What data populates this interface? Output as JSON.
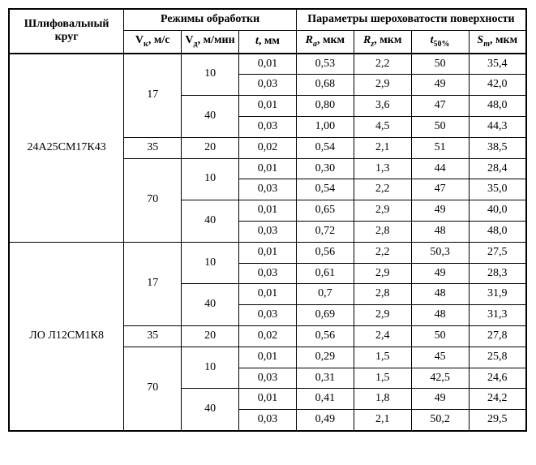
{
  "headers": {
    "wheel": "Шлифовальный круг",
    "modes": "Режимы обработки",
    "roughness": "Параметры шероховатости поверхности",
    "vk": "V<sub>к</sub>, м/с",
    "vd": "V<sub>д</sub>, м/мин",
    "t": "<i>t</i>, мм",
    "ra": "<i>R<sub>a</sub></i>, мкм",
    "rz": "<i>R<sub>z</sub></i>, мкм",
    "t50": "<i>t</i><sub>50%</sub>",
    "st": "<i>S<sub>т</sub></i>, мкм"
  },
  "groups": [
    {
      "wheel": "24А25СМ17К43",
      "blocks": [
        {
          "vk": "17",
          "sub": [
            {
              "vd": "10",
              "rows": [
                {
                  "t": "0,01",
                  "ra": "0,53",
                  "rz": "2,2",
                  "t50": "50",
                  "st": "35,4"
                },
                {
                  "t": "0,03",
                  "ra": "0,68",
                  "rz": "2,9",
                  "t50": "49",
                  "st": "42,0"
                }
              ]
            },
            {
              "vd": "40",
              "rows": [
                {
                  "t": "0,01",
                  "ra": "0,80",
                  "rz": "3,6",
                  "t50": "47",
                  "st": "48,0"
                },
                {
                  "t": "0,03",
                  "ra": "1,00",
                  "rz": "4,5",
                  "t50": "50",
                  "st": "44,3"
                }
              ]
            }
          ]
        },
        {
          "vk": "35",
          "sub": [
            {
              "vd": "20",
              "rows": [
                {
                  "t": "0,02",
                  "ra": "0,54",
                  "rz": "2,1",
                  "t50": "51",
                  "st": "38,5"
                }
              ]
            }
          ]
        },
        {
          "vk": "70",
          "sub": [
            {
              "vd": "10",
              "rows": [
                {
                  "t": "0,01",
                  "ra": "0,30",
                  "rz": "1,3",
                  "t50": "44",
                  "st": "28,4"
                },
                {
                  "t": "0,03",
                  "ra": "0,54",
                  "rz": "2,2",
                  "t50": "47",
                  "st": "35,0"
                }
              ]
            },
            {
              "vd": "40",
              "rows": [
                {
                  "t": "0,01",
                  "ra": "0,65",
                  "rz": "2,9",
                  "t50": "49",
                  "st": "40,0"
                },
                {
                  "t": "0,03",
                  "ra": "0,72",
                  "rz": "2,8",
                  "t50": "48",
                  "st": "48,0"
                }
              ]
            }
          ]
        }
      ]
    },
    {
      "wheel": "ЛО Л12СМ1К8",
      "blocks": [
        {
          "vk": "17",
          "sub": [
            {
              "vd": "10",
              "rows": [
                {
                  "t": "0,01",
                  "ra": "0,56",
                  "rz": "2,2",
                  "t50": "50,3",
                  "st": "27,5"
                },
                {
                  "t": "0,03",
                  "ra": "0,61",
                  "rz": "2,9",
                  "t50": "49",
                  "st": "28,3"
                }
              ]
            },
            {
              "vd": "40",
              "rows": [
                {
                  "t": "0,01",
                  "ra": "0,7",
                  "rz": "2,8",
                  "t50": "48",
                  "st": "31,9"
                },
                {
                  "t": "0,03",
                  "ra": "0,69",
                  "rz": "2,9",
                  "t50": "48",
                  "st": "31,3"
                }
              ]
            }
          ]
        },
        {
          "vk": "35",
          "sub": [
            {
              "vd": "20",
              "rows": [
                {
                  "t": "0,02",
                  "ra": "0,56",
                  "rz": "2,4",
                  "t50": "50",
                  "st": "27,8"
                }
              ]
            }
          ]
        },
        {
          "vk": "70",
          "sub": [
            {
              "vd": "10",
              "rows": [
                {
                  "t": "0,01",
                  "ra": "0,29",
                  "rz": "1,5",
                  "t50": "45",
                  "st": "25,8"
                },
                {
                  "t": "0,03",
                  "ra": "0,31",
                  "rz": "1,5",
                  "t50": "42,5",
                  "st": "24,6"
                }
              ]
            },
            {
              "vd": "40",
              "rows": [
                {
                  "t": "0,01",
                  "ra": "0,41",
                  "rz": "1,8",
                  "t50": "49",
                  "st": "24,2"
                },
                {
                  "t": "0,03",
                  "ra": "0,49",
                  "rz": "2,1",
                  "t50": "50,2",
                  "st": "29,5"
                }
              ]
            }
          ]
        }
      ]
    }
  ]
}
